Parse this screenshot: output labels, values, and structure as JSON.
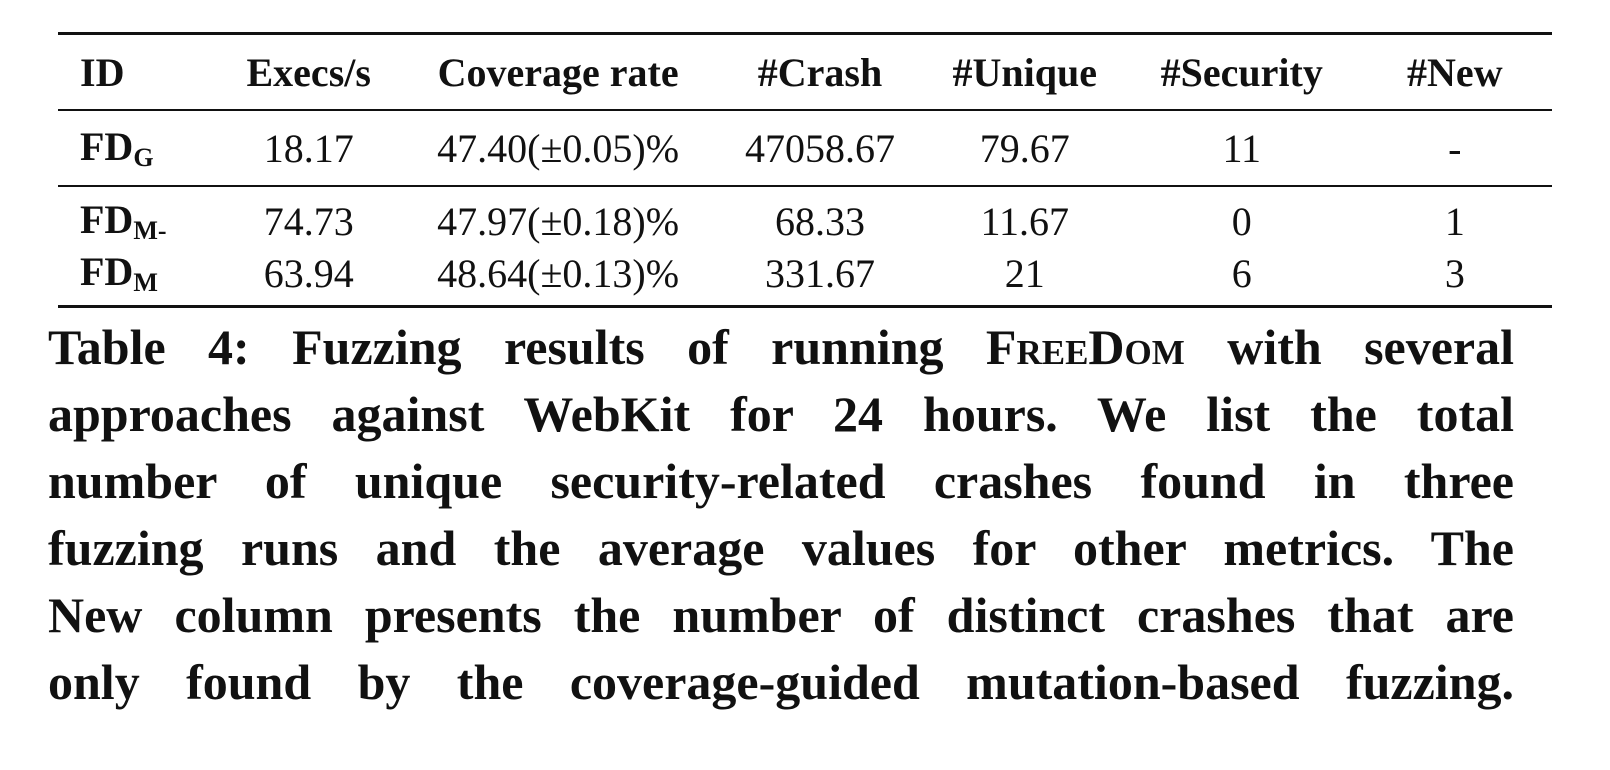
{
  "table": {
    "headers": [
      "ID",
      "Execs/s",
      "Coverage rate",
      "#Crash",
      "#Unique",
      "#Security",
      "#New"
    ],
    "rows": [
      {
        "id_main": "FD",
        "id_sub": "G",
        "cells": [
          "18.17",
          "47.40(±0.05)%",
          "47058.67",
          "79.67",
          "11",
          "-"
        ]
      },
      {
        "id_main": "FD",
        "id_sub": "M-",
        "cells": [
          "74.73",
          "47.97(±0.18)%",
          "68.33",
          "11.67",
          "0",
          "1"
        ]
      },
      {
        "id_main": "FD",
        "id_sub": "M",
        "cells": [
          "63.94",
          "48.64(±0.13)%",
          "331.67",
          "21",
          "6",
          "3"
        ]
      }
    ]
  },
  "caption": {
    "line1_before": "Table 4: Fuzzing results of running ",
    "line1_name": "FreeDom",
    "line1_after": " with several",
    "line2": "approaches against WebKit for 24 hours. We list the total",
    "line3": "number of unique security-related crashes found in three",
    "line4": "fuzzing runs and the average values for other metrics. The",
    "line5": "New column presents the number of distinct crashes that are",
    "line6": "only found by the coverage-guided mutation-based fuzzing."
  }
}
